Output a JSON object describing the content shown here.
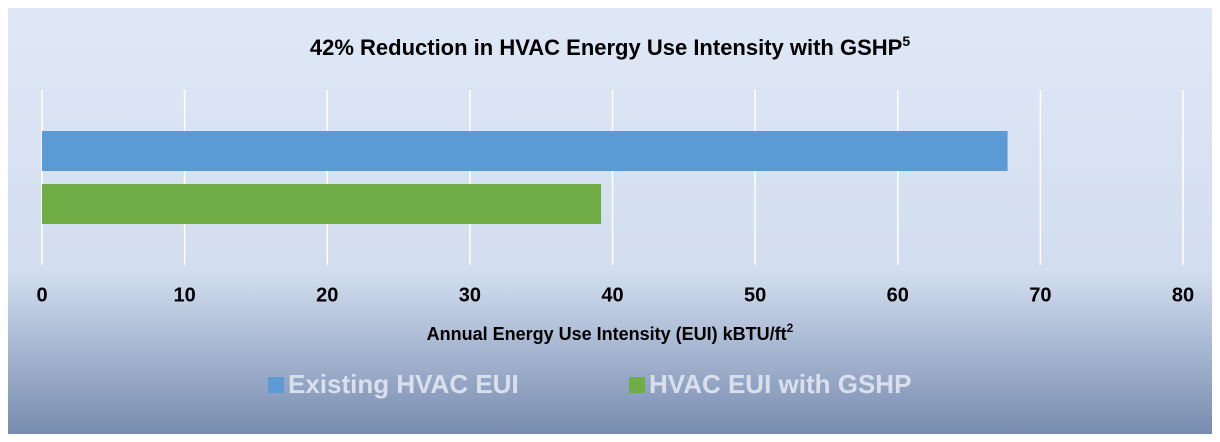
{
  "chart_data": {
    "type": "hbar",
    "title": "42% Reduction in HVAC Energy Use Intensity with GSHP",
    "title_superscript": "5",
    "x_label": "Annual Energy Use Intensity (EUI) kBTU/ft",
    "x_label_superscript": "2",
    "categories": [
      null
    ],
    "series": [
      {
        "name": "Existing HVAC EUI",
        "color": "#5b9bd5",
        "values": [
          67.7
        ]
      },
      {
        "name": "HVAC EUI with GSHP",
        "color": "#70ad47",
        "values": [
          39.2
        ]
      }
    ],
    "xlim": [
      0,
      80
    ],
    "xticks": [
      0,
      10,
      20,
      30,
      40,
      50,
      60,
      70,
      80
    ],
    "grid": true,
    "legend": "bottom"
  }
}
